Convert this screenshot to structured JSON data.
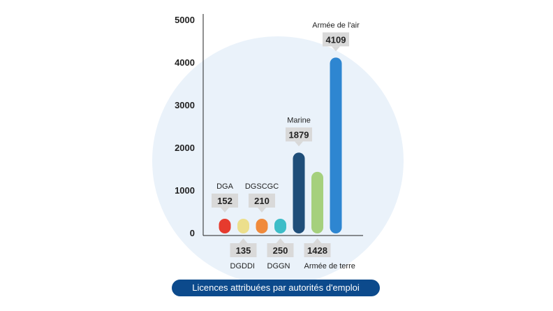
{
  "caption": "Licences attribuées par autorités d'emploi",
  "chart_data": {
    "type": "bar",
    "title": "Licences attribuées par autorités d'emploi",
    "xlabel": "",
    "ylabel": "",
    "ylim": [
      0,
      5000
    ],
    "yticks": [
      0,
      1000,
      2000,
      3000,
      4000,
      5000
    ],
    "grid": false,
    "categories": [
      "DGA",
      "DGDDI",
      "DGSCGC",
      "DGGN",
      "Marine",
      "Armée de terre",
      "Armée de l'air"
    ],
    "values": [
      152,
      135,
      210,
      250,
      1879,
      1428,
      4109
    ],
    "label_side": [
      "top",
      "bottom",
      "top",
      "bottom",
      "top",
      "bottom",
      "top"
    ],
    "colors": [
      "#e63b2e",
      "#ecdf8c",
      "#f08a3c",
      "#3dbdc8",
      "#1f4e79",
      "#a5d07d",
      "#2e86d1"
    ],
    "value_labels": [
      "152",
      "135",
      "210",
      "250",
      "1879",
      "1428",
      "4109"
    ],
    "tick_labels": [
      "0",
      "1000",
      "2000",
      "3000",
      "4000",
      "5000"
    ]
  }
}
